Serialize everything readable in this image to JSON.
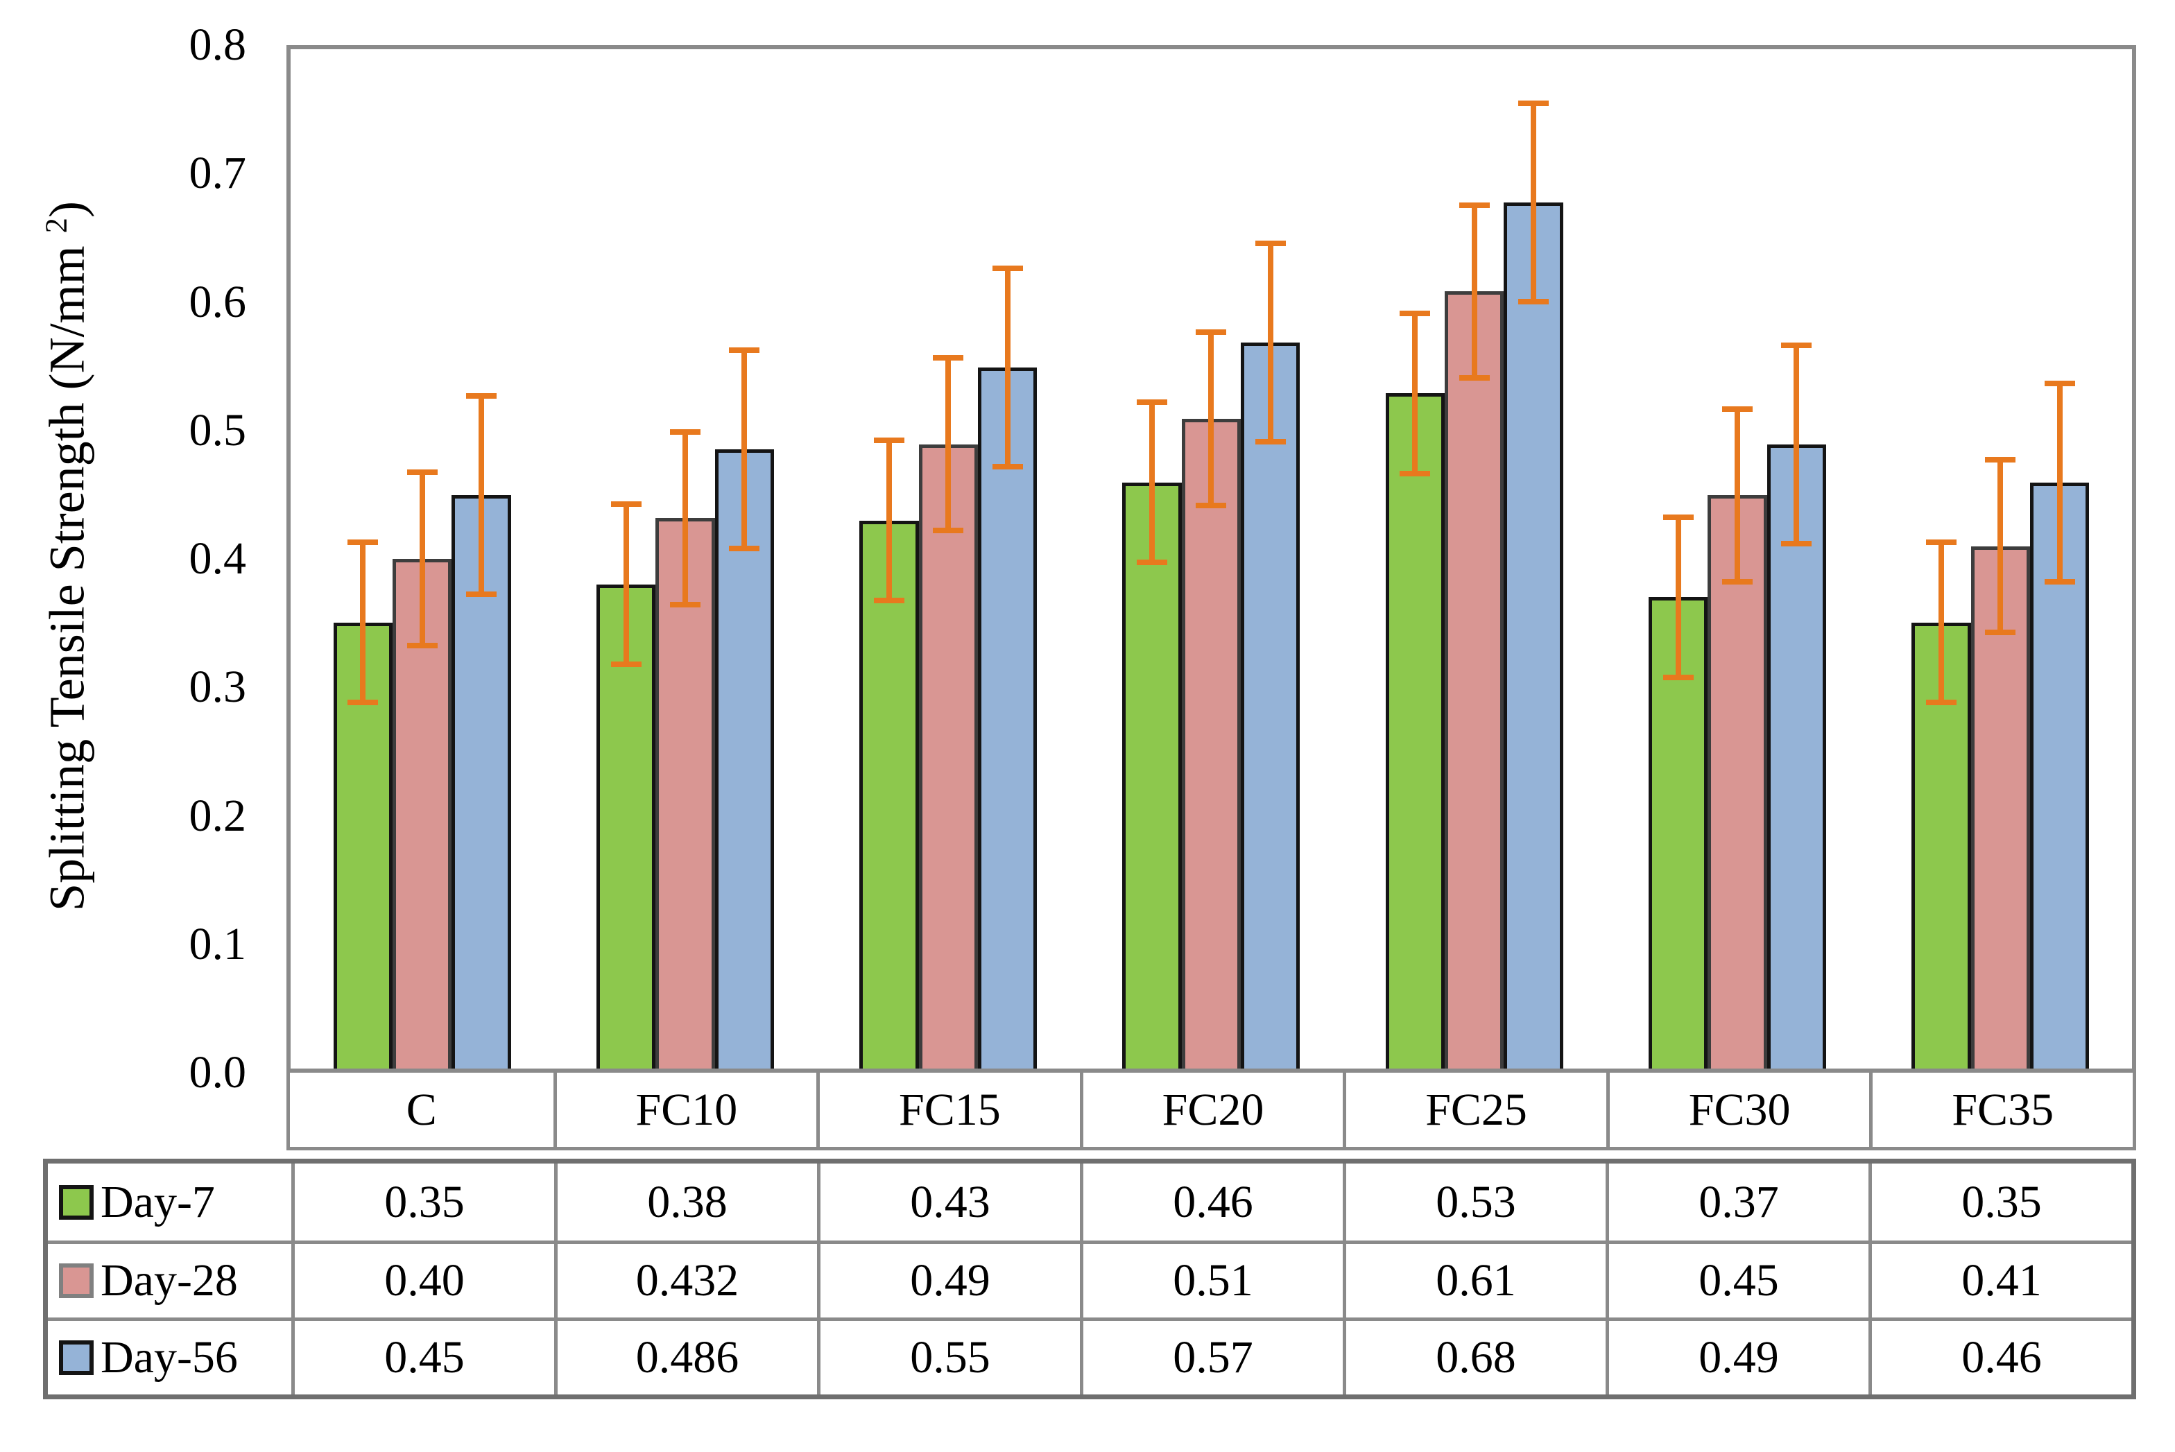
{
  "chart_data": {
    "type": "bar",
    "title": "",
    "y_axis": {
      "label_main": "Splitting Tensile Strength (N/mm ",
      "label_sup": "2",
      "label_suffix": ")",
      "min": 0,
      "max": 0.8,
      "ticks": [
        "0.0",
        "0.1",
        "0.2",
        "0.3",
        "0.4",
        "0.5",
        "0.6",
        "0.7",
        "0.8"
      ]
    },
    "categories": [
      "C",
      "FC10",
      "FC15",
      "FC20",
      "FC25",
      "FC30",
      "FC35"
    ],
    "series": [
      {
        "name": "Day-7",
        "color": "#8dc84d",
        "border_color": "#141414",
        "key_border_color": "#141414",
        "error": 0.065,
        "values": [
          0.35,
          0.38,
          0.43,
          0.46,
          0.53,
          0.37,
          0.35
        ],
        "labels": [
          "0.35",
          "0.38",
          "0.43",
          "0.46",
          "0.53",
          "0.37",
          "0.35"
        ]
      },
      {
        "name": "Day-28",
        "color": "#d99693",
        "border_color": "#3d3d3d",
        "key_border_color": "#808080",
        "error": 0.07,
        "values": [
          0.4,
          0.432,
          0.49,
          0.51,
          0.61,
          0.45,
          0.41
        ],
        "labels": [
          "0.40",
          "0.432",
          "0.49",
          "0.51",
          "0.61",
          "0.45",
          "0.41"
        ]
      },
      {
        "name": "Day-56",
        "color": "#95b3d7",
        "border_color": "#141414",
        "key_border_color": "#141414",
        "error": 0.08,
        "values": [
          0.45,
          0.486,
          0.55,
          0.57,
          0.68,
          0.49,
          0.46
        ],
        "labels": [
          "0.45",
          "0.486",
          "0.55",
          "0.57",
          "0.68",
          "0.49",
          "0.46"
        ]
      }
    ],
    "error_bar_color": "#e8791e",
    "grid": false,
    "legend_position": "table-left"
  }
}
